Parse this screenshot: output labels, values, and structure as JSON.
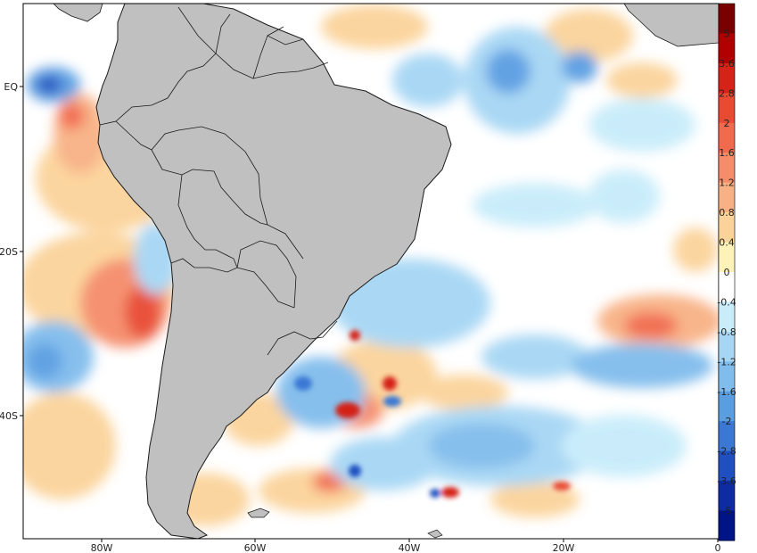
{
  "map": {
    "lon_ticks": [
      "80W",
      "60W",
      "40W",
      "20W",
      "0"
    ],
    "lat_ticks": [
      "EQ",
      "20S",
      "40S"
    ],
    "land_color": "#c0c0c0",
    "border_color": "#1a1a1a"
  },
  "colorbar": {
    "labels": [
      "5",
      "3.6",
      "2.8",
      "2",
      "1.6",
      "1.2",
      "0.8",
      "0.4",
      "0",
      "-0.4",
      "-0.8",
      "-1.2",
      "-1.6",
      "-2",
      "-2.8",
      "-3.6",
      "-5"
    ],
    "colors": [
      "#7a0000",
      "#b00000",
      "#d42418",
      "#e84a32",
      "#f26a4e",
      "#f58c6a",
      "#f8b184",
      "#fbd39a",
      "#fdf2b8",
      "#ffffff",
      "#c8ecfa",
      "#a6d6f4",
      "#80bcec",
      "#5a9ee2",
      "#3a78d4",
      "#1f4fc0",
      "#0d2ca4",
      "#001488"
    ]
  }
}
